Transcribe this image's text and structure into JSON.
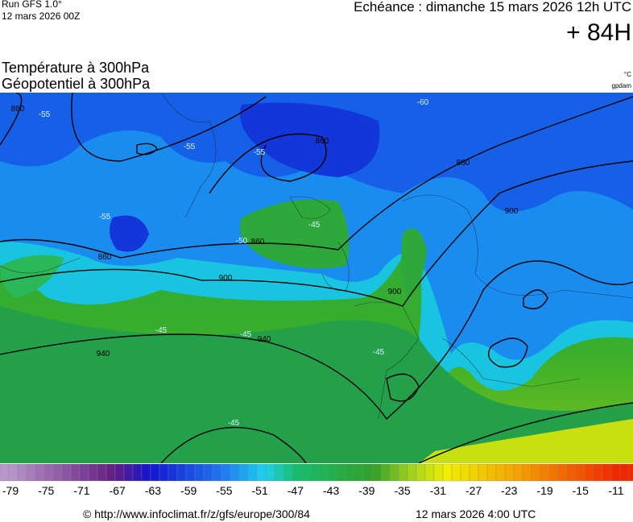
{
  "header": {
    "run": "Run GFS 1.0°",
    "run_date": "12 mars 2026 00Z",
    "valid": "Echéance : dimanche 15 mars 2026 12h UTC",
    "lead": "+ 84H"
  },
  "titles": {
    "line1": "Température à 300hPa",
    "line2": "Géopotentiel à 300hPa",
    "unit1": "°C",
    "unit2": "gpdam"
  },
  "map": {
    "contour_labels": [
      860,
      860,
      860,
      860,
      860,
      900,
      900,
      900,
      940,
      940,
      -60,
      -55,
      -55,
      -55,
      -55,
      -50,
      -45,
      -45,
      -45,
      -45,
      -45
    ]
  },
  "colorbar": {
    "ticks": [
      -79,
      -75,
      -71,
      -67,
      -63,
      -59,
      -55,
      -51,
      -47,
      -43,
      -39,
      -35,
      -31,
      -27,
      -23,
      -19,
      -15,
      -11
    ]
  },
  "footer": {
    "url": "© http://www.infoclimat.fr/z/gfs/europe/300/84",
    "date": "12 mars 2026  4:00 UTC"
  }
}
